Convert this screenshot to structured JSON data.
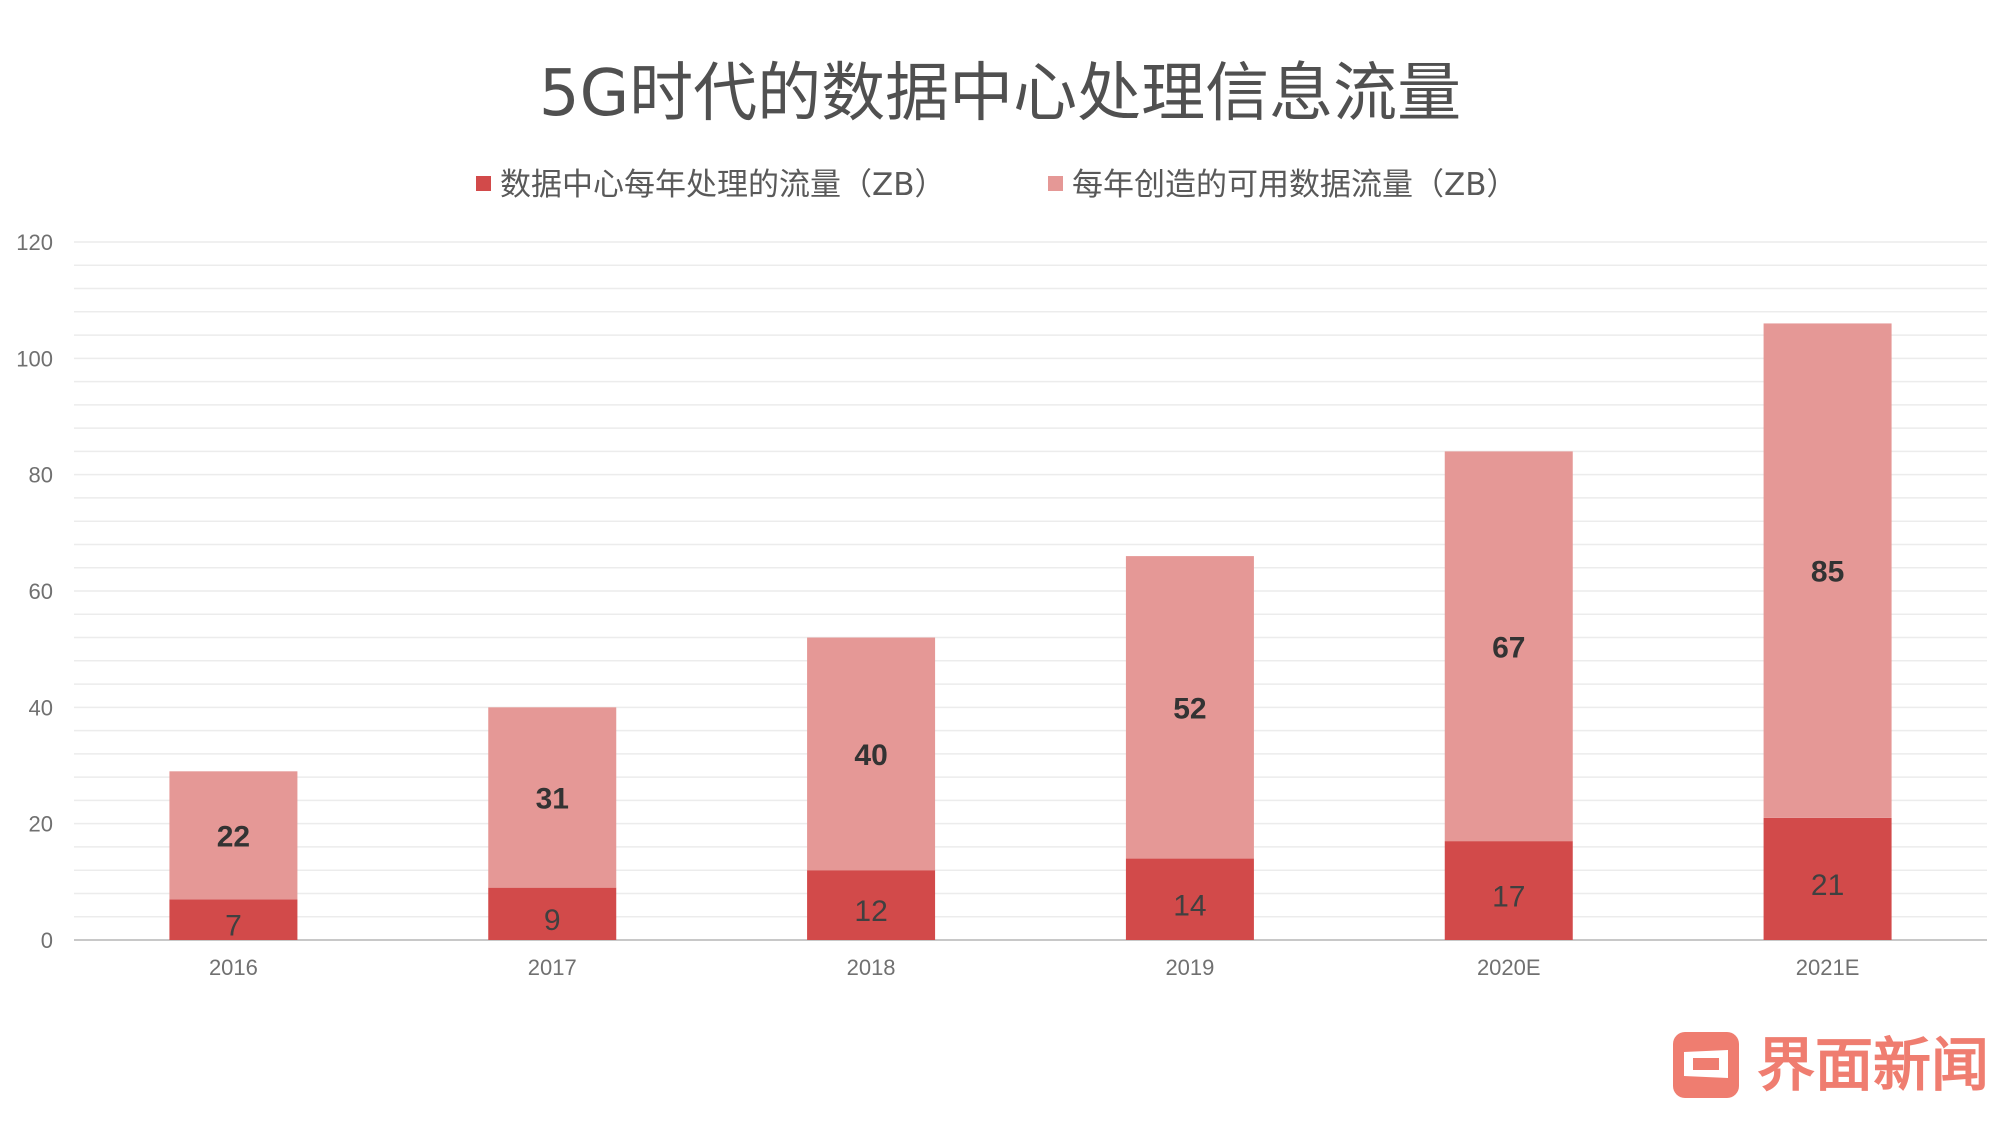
{
  "chart_data": {
    "type": "bar",
    "stacked": true,
    "title": "5G时代的数据中心处理信息流量",
    "categories": [
      "2016",
      "2017",
      "2018",
      "2019",
      "2020E",
      "2021E"
    ],
    "series": [
      {
        "name": "数据中心每年处理的流量（ZB）",
        "values": [
          7,
          9,
          12,
          14,
          17,
          21
        ],
        "color": "#d24a4a"
      },
      {
        "name": "每年创造的可用数据流量（ZB）",
        "values": [
          22,
          31,
          40,
          52,
          67,
          85
        ],
        "color": "#e59896"
      }
    ],
    "ylim": [
      0,
      120
    ],
    "yticks": [
      0,
      20,
      40,
      60,
      80,
      100,
      120
    ],
    "grid": true,
    "legend": "top-center",
    "xlabel": "",
    "ylabel": ""
  },
  "watermark": {
    "text": "界面新闻",
    "color": "#ef7d70"
  }
}
